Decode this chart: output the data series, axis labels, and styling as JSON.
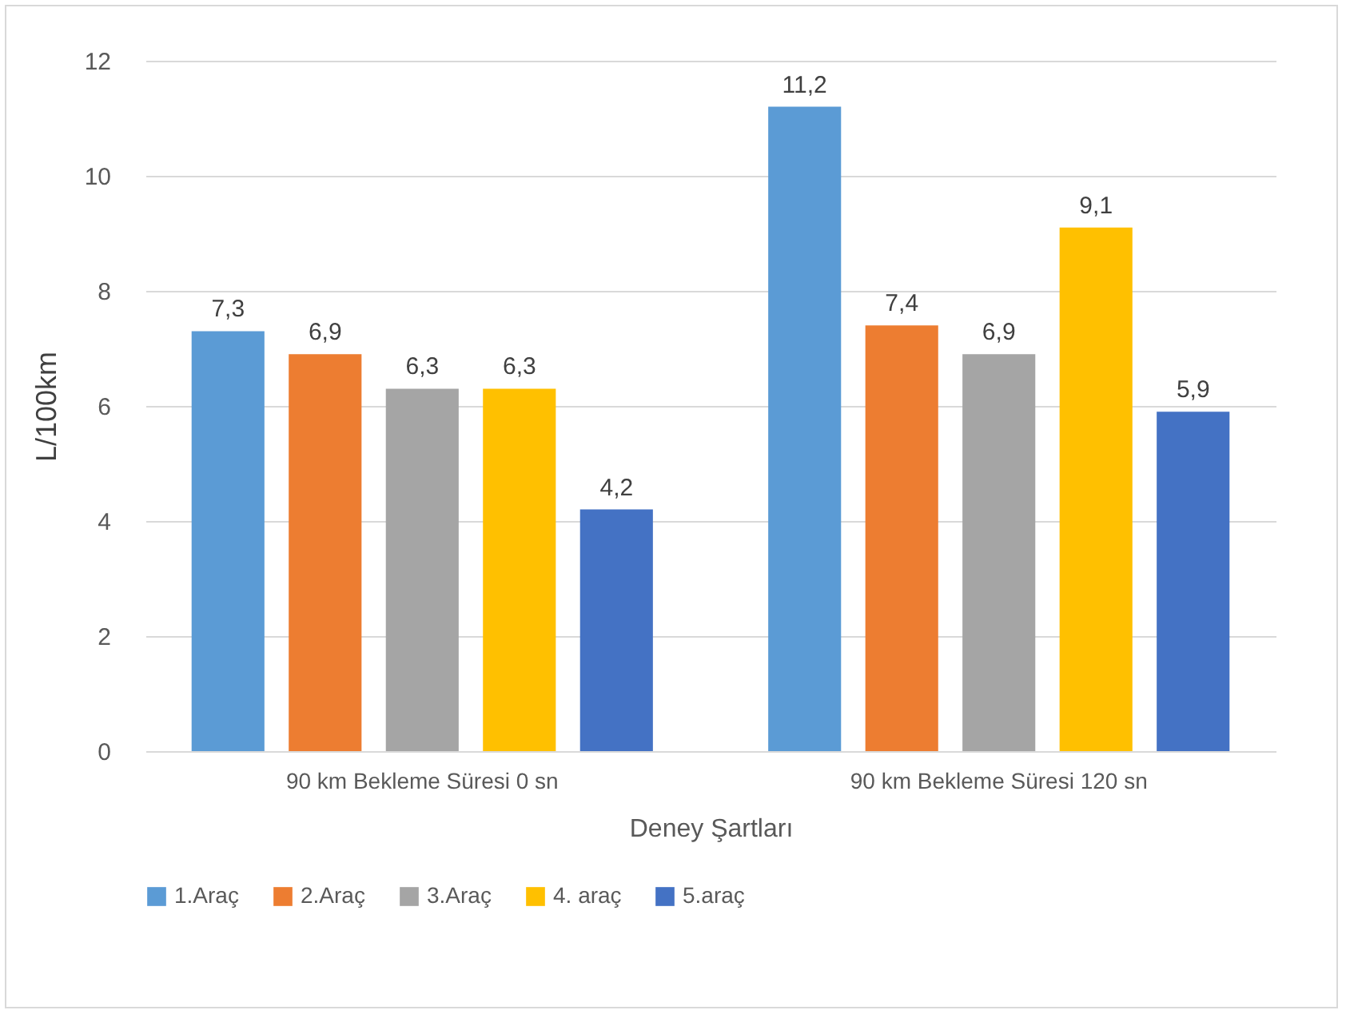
{
  "chart_data": {
    "type": "bar",
    "xlabel": "Deney Şartları",
    "ylabel": "L/100km",
    "categories": [
      "90 km Bekleme Süresi 0 sn",
      "90 km Bekleme Süresi 120 sn"
    ],
    "series": [
      {
        "name": "1.Araç",
        "color": "#5b9bd5",
        "values": [
          7.3,
          11.2
        ],
        "value_labels": [
          "7,3",
          "11,2"
        ]
      },
      {
        "name": "2.Araç",
        "color": "#ed7d31",
        "values": [
          6.9,
          7.4
        ],
        "value_labels": [
          "6,9",
          "7,4"
        ]
      },
      {
        "name": "3.Araç",
        "color": "#a5a5a5",
        "values": [
          6.3,
          6.9
        ],
        "value_labels": [
          "6,3",
          "6,9"
        ]
      },
      {
        "name": "4. araç",
        "color": "#ffc000",
        "values": [
          6.3,
          9.1
        ],
        "value_labels": [
          "6,3",
          "9,1"
        ]
      },
      {
        "name": "5.araç",
        "color": "#4472c4",
        "values": [
          4.2,
          5.9
        ],
        "value_labels": [
          "4,2",
          "5,9"
        ]
      }
    ],
    "ylim": [
      0,
      12
    ],
    "yticks": [
      0,
      2,
      4,
      6,
      8,
      10,
      12
    ],
    "grid": "y",
    "legend": "bottom"
  }
}
